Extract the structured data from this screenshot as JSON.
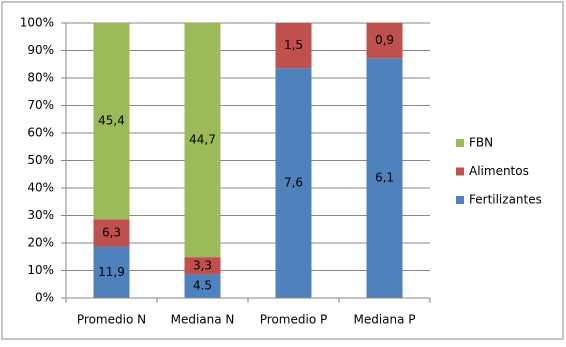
{
  "chart_data": {
    "type": "bar",
    "stacking": "percent",
    "categories": [
      "Promedio N",
      "Mediana N",
      "Promedio P",
      "Mediana P"
    ],
    "series": [
      {
        "name": "Fertilizantes",
        "color": "#4f81bd",
        "values": [
          11.9,
          4.5,
          7.6,
          6.1
        ],
        "value_labels": [
          "11,9",
          "4.5",
          "7,6",
          "6,1"
        ]
      },
      {
        "name": "Alimentos",
        "color": "#c0504d",
        "values": [
          6.3,
          3.3,
          1.5,
          0.9
        ],
        "value_labels": [
          "6,3",
          "3,3",
          "1,5",
          "0,9"
        ]
      },
      {
        "name": "FBN",
        "color": "#9bbb59",
        "values": [
          45.4,
          44.7,
          null,
          null
        ],
        "value_labels": [
          "45,4",
          "44,7",
          null,
          null
        ]
      }
    ],
    "ylim": [
      0,
      100
    ],
    "yticks": [
      {
        "value": 0,
        "label": "0%"
      },
      {
        "value": 10,
        "label": "10%"
      },
      {
        "value": 20,
        "label": "20%"
      },
      {
        "value": 30,
        "label": "30%"
      },
      {
        "value": 40,
        "label": "40%"
      },
      {
        "value": 50,
        "label": "50%"
      },
      {
        "value": 60,
        "label": "60%"
      },
      {
        "value": 70,
        "label": "70%"
      },
      {
        "value": 80,
        "label": "80%"
      },
      {
        "value": 90,
        "label": "90%"
      },
      {
        "value": 100,
        "label": "100%"
      }
    ],
    "grid": true,
    "legend": "right"
  }
}
